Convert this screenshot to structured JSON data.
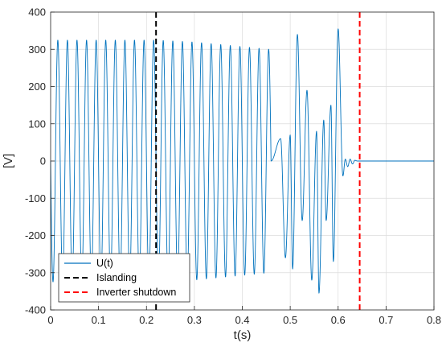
{
  "chart_data": {
    "type": "line",
    "xlabel": "t(s)",
    "ylabel": "[V]",
    "xlim": [
      0,
      0.8
    ],
    "ylim": [
      -400,
      400
    ],
    "xticks": [
      "0",
      "0.1",
      "0.2",
      "0.3",
      "0.4",
      "0.5",
      "0.6",
      "0.7",
      "0.8"
    ],
    "yticks": [
      "400",
      "300",
      "200",
      "100",
      "0",
      "-100",
      "-200",
      "-300",
      "-400"
    ],
    "grid": true,
    "legend_position": "bottom-left",
    "series": [
      {
        "name": "U(t)",
        "color": "#0072BD",
        "style": "solid",
        "signal": {
          "frequency_hz": 50,
          "segments": [
            {
              "t_start": 0.0,
              "t_end": 0.22,
              "amplitude": 325
            },
            {
              "t_start": 0.22,
              "t_end": 0.3,
              "amplitude_start": 325,
              "amplitude_end": 320
            },
            {
              "t_start": 0.3,
              "t_end": 0.46,
              "amplitude_start": 320,
              "amplitude_end": 300
            },
            {
              "t_start": 0.46,
              "t_end": 0.6,
              "amplitude": 280,
              "distorted": true
            },
            {
              "t_start": 0.6,
              "t_end": 0.645,
              "amplitude_start": 100,
              "amplitude_end": 0
            },
            {
              "t_start": 0.645,
              "t_end": 0.8,
              "amplitude": 0
            }
          ],
          "distorted_peaks": [
            {
              "t": 0.48,
              "v": 60
            },
            {
              "t": 0.49,
              "v": -260
            },
            {
              "t": 0.5,
              "v": 70
            },
            {
              "t": 0.505,
              "v": -290
            },
            {
              "t": 0.515,
              "v": 340
            },
            {
              "t": 0.525,
              "v": -160
            },
            {
              "t": 0.535,
              "v": 190
            },
            {
              "t": 0.545,
              "v": -320
            },
            {
              "t": 0.555,
              "v": 80
            },
            {
              "t": 0.56,
              "v": -355
            },
            {
              "t": 0.57,
              "v": 110
            },
            {
              "t": 0.575,
              "v": -160
            },
            {
              "t": 0.585,
              "v": 150
            },
            {
              "t": 0.59,
              "v": -270
            },
            {
              "t": 0.6,
              "v": 355
            },
            {
              "t": 0.61,
              "v": -40
            },
            {
              "t": 0.615,
              "v": 5
            },
            {
              "t": 0.62,
              "v": -15
            },
            {
              "t": 0.625,
              "v": 5
            },
            {
              "t": 0.63,
              "v": -8
            },
            {
              "t": 0.635,
              "v": 2
            },
            {
              "t": 0.64,
              "v": 0
            }
          ]
        }
      },
      {
        "name": "Islanding",
        "color": "#000000",
        "style": "dashed",
        "x": 0.22
      },
      {
        "name": "Inverter shutdown",
        "color": "#FF0000",
        "style": "dashed",
        "x": 0.645
      }
    ]
  }
}
